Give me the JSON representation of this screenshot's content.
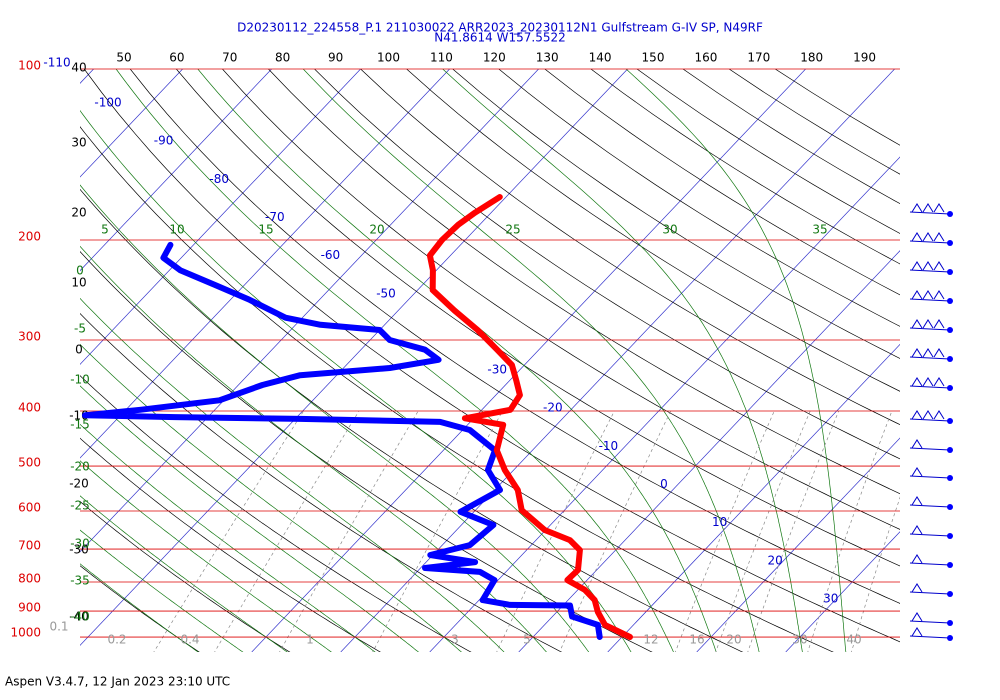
{
  "header": {
    "title": "D20230112_224558_P.1 211030022 ARR2023_20230112N1 Gulfstream G-IV SP, N49RF",
    "subtitle": "N41.8614 W157.5522"
  },
  "pressure_labels": [
    100,
    200,
    300,
    400,
    500,
    600,
    700,
    800,
    900,
    1000
  ],
  "top_labels": [
    50,
    60,
    70,
    80,
    90,
    100,
    110,
    120,
    130,
    140,
    150,
    160,
    170,
    180,
    190
  ],
  "left_labels": [
    40,
    30,
    20,
    10,
    0,
    -10,
    -20,
    -30,
    -40
  ],
  "isotherm_labels": [
    -110,
    -100,
    -90,
    -80,
    -70,
    -60,
    -50,
    -30,
    -20,
    -10,
    0,
    10,
    20,
    30
  ],
  "moist_adiabat_labels_top": [
    5,
    10,
    15,
    20,
    25,
    30,
    35
  ],
  "moist_adiabat_labels_left": [
    0,
    -5,
    -10,
    -15,
    -20,
    -25,
    -30,
    -35,
    -40
  ],
  "mixing_ratio_labels": [
    0.1,
    0.2,
    0.4,
    1,
    3,
    5,
    12,
    16,
    20,
    30,
    40
  ],
  "temperature": {
    "pressure": [
      1000,
      952,
      903,
      861,
      826,
      794,
      762,
      703,
      675,
      648,
      598,
      551,
      508,
      469,
      423,
      412,
      398,
      375,
      353,
      332,
      312,
      288,
      266,
      245,
      226,
      213,
      200,
      188,
      179,
      168
    ],
    "values": [
      10.9,
      6.8,
      4.6,
      3.0,
      0.8,
      -2.2,
      -2.1,
      -4.0,
      -6.2,
      -10.1,
      -14.8,
      -17.4,
      -21.0,
      -24.0,
      -26.0,
      -31.0,
      -26.8,
      -27.3,
      -29.3,
      -31.4,
      -34.7,
      -39.0,
      -43.7,
      -48.3,
      -50.4,
      -52.3,
      -52.6,
      -52.4,
      -51.8,
      -50.7
    ]
  },
  "dewpoint": {
    "pressure": [
      1000,
      952,
      920,
      880,
      878,
      861,
      794,
      768,
      756,
      738,
      717,
      689,
      635,
      602,
      551,
      508,
      469,
      432,
      418,
      413,
      410,
      407,
      398,
      383,
      360,
      346,
      336,
      325,
      312,
      300,
      288,
      282,
      274,
      255,
      240,
      226,
      215,
      204
    ],
    "values": [
      7.5,
      6.0,
      2.2,
      0.8,
      -6.0,
      -9.6,
      -10.4,
      -12.9,
      -19.5,
      -14.5,
      -20.3,
      -16.9,
      -16.4,
      -21.5,
      -19.4,
      -22.9,
      -24.2,
      -29.2,
      -33.4,
      -49.4,
      -63.7,
      -74.0,
      -68.4,
      -60.5,
      -57.3,
      -54.1,
      -44.8,
      -40.2,
      -42.8,
      -47.8,
      -50.0,
      -57.2,
      -61.9,
      -67.8,
      -73.3,
      -78.8,
      -82.0,
      -82.6
    ]
  },
  "footer": "Aspen V3.4.7, 12 Jan 2023  23:10 UTC"
}
